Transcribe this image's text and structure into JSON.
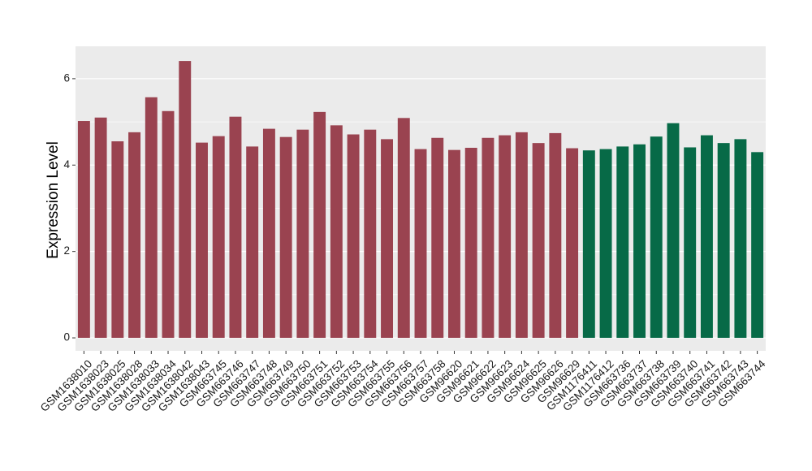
{
  "chart_data": {
    "type": "bar",
    "title": "",
    "xlabel": "",
    "ylabel": "Expression Level",
    "ylim": [
      -0.3,
      6.75
    ],
    "yticks": [
      0,
      2,
      4,
      6
    ],
    "grid": true,
    "legend": "none",
    "colors": {
      "group1": "#9a4350",
      "group2": "#076a47",
      "panel": "#ebebeb",
      "gridline": "#ffffff"
    },
    "categories": [
      "GSM1638010",
      "GSM1638023",
      "GSM1638025",
      "GSM1638028",
      "GSM1638033",
      "GSM1638034",
      "GSM1638042",
      "GSM1638043",
      "GSM663745",
      "GSM663746",
      "GSM663747",
      "GSM663748",
      "GSM663749",
      "GSM663750",
      "GSM663751",
      "GSM663752",
      "GSM663753",
      "GSM663754",
      "GSM663755",
      "GSM663756",
      "GSM663757",
      "GSM663758",
      "GSM96620",
      "GSM96621",
      "GSM96622",
      "GSM96623",
      "GSM96624",
      "GSM96625",
      "GSM96626",
      "GSM96629",
      "GSM1176411",
      "GSM1176412",
      "GSM663736",
      "GSM663737",
      "GSM663738",
      "GSM663739",
      "GSM663740",
      "GSM663741",
      "GSM663742",
      "GSM663743",
      "GSM663744"
    ],
    "values": [
      5.02,
      5.1,
      4.55,
      4.76,
      5.57,
      5.25,
      6.41,
      4.52,
      4.67,
      5.12,
      4.43,
      4.84,
      4.65,
      4.82,
      5.23,
      4.92,
      4.71,
      4.82,
      4.6,
      5.09,
      4.37,
      4.63,
      4.35,
      4.4,
      4.63,
      4.69,
      4.76,
      4.51,
      4.74,
      4.39,
      4.34,
      4.37,
      4.43,
      4.48,
      4.66,
      4.97,
      4.41,
      4.69,
      4.51,
      4.6,
      4.3
    ],
    "groups": [
      1,
      1,
      1,
      1,
      1,
      1,
      1,
      1,
      1,
      1,
      1,
      1,
      1,
      1,
      1,
      1,
      1,
      1,
      1,
      1,
      1,
      1,
      1,
      1,
      1,
      1,
      1,
      1,
      1,
      1,
      2,
      2,
      2,
      2,
      2,
      2,
      2,
      2,
      2,
      2,
      2
    ]
  }
}
